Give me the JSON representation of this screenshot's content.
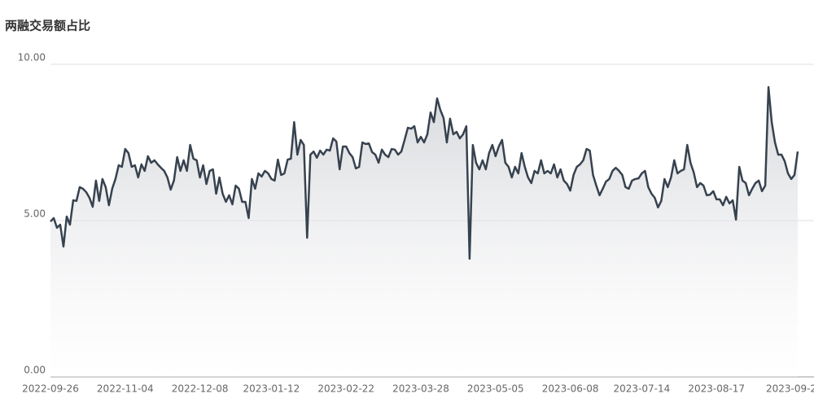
{
  "chart_data": {
    "type": "area-line",
    "title": "两融交易额占比",
    "color": "#37424f",
    "grid": true,
    "ylim": [
      0,
      10
    ],
    "yticks": [
      {
        "value": 0,
        "label": "0.00"
      },
      {
        "value": 5,
        "label": "5.00"
      },
      {
        "value": 10,
        "label": "10.00"
      }
    ],
    "categories": [
      "2022-09-26",
      null,
      null,
      null,
      null,
      null,
      null,
      null,
      null,
      null,
      null,
      null,
      null,
      null,
      null,
      null,
      null,
      null,
      null,
      null,
      null,
      null,
      null,
      "2022-11-04",
      null,
      null,
      null,
      null,
      null,
      null,
      null,
      null,
      null,
      null,
      null,
      null,
      null,
      null,
      null,
      null,
      null,
      null,
      null,
      null,
      null,
      null,
      "2022-12-08",
      null,
      null,
      null,
      null,
      null,
      null,
      null,
      null,
      null,
      null,
      null,
      null,
      null,
      null,
      null,
      null,
      null,
      null,
      null,
      null,
      null,
      "2023-01-12",
      null,
      null,
      null,
      null,
      null,
      null,
      null,
      null,
      null,
      null,
      null,
      null,
      null,
      null,
      null,
      null,
      null,
      null,
      null,
      null,
      null,
      null,
      "2023-02-22",
      null,
      null,
      null,
      null,
      null,
      null,
      null,
      null,
      null,
      null,
      null,
      null,
      null,
      null,
      null,
      null,
      null,
      null,
      null,
      null,
      null,
      null,
      "2023-03-28",
      null,
      null,
      null,
      null,
      null,
      null,
      null,
      null,
      null,
      null,
      null,
      null,
      null,
      null,
      null,
      null,
      null,
      null,
      null,
      null,
      null,
      null,
      "2023-05-05",
      null,
      null,
      null,
      null,
      null,
      null,
      null,
      null,
      null,
      null,
      null,
      null,
      null,
      null,
      null,
      null,
      null,
      null,
      null,
      null,
      null,
      null,
      "2023-06-08",
      null,
      null,
      null,
      null,
      null,
      null,
      null,
      null,
      null,
      null,
      null,
      null,
      null,
      null,
      null,
      null,
      null,
      null,
      null,
      null,
      null,
      "2023-07-14",
      null,
      null,
      null,
      null,
      null,
      null,
      null,
      null,
      null,
      null,
      null,
      null,
      null,
      null,
      null,
      null,
      null,
      null,
      null,
      null,
      null,
      null,
      "2023-08-17",
      null,
      null,
      null,
      null,
      null,
      null,
      null,
      null,
      null,
      null,
      null,
      null,
      null,
      null,
      null,
      null,
      null,
      null,
      null,
      null,
      null,
      null,
      "2023-09-2",
      null,
      null
    ],
    "values": [
      4.97,
      5.08,
      4.77,
      4.87,
      4.17,
      5.13,
      4.87,
      5.65,
      5.63,
      6.07,
      6.02,
      5.91,
      5.73,
      5.44,
      6.28,
      5.63,
      6.33,
      6.07,
      5.49,
      6.02,
      6.33,
      6.77,
      6.72,
      7.29,
      7.16,
      6.72,
      6.77,
      6.38,
      6.8,
      6.59,
      7.06,
      6.85,
      6.93,
      6.8,
      6.69,
      6.59,
      6.38,
      5.99,
      6.28,
      7.03,
      6.59,
      6.93,
      6.59,
      7.42,
      6.98,
      6.93,
      6.38,
      6.77,
      6.17,
      6.59,
      6.64,
      5.86,
      6.38,
      5.86,
      5.6,
      5.81,
      5.52,
      6.12,
      6.02,
      5.6,
      5.6,
      5.08,
      6.33,
      6.02,
      6.51,
      6.41,
      6.59,
      6.51,
      6.33,
      6.28,
      6.95,
      6.46,
      6.51,
      6.95,
      6.98,
      8.15,
      7.11,
      7.58,
      7.42,
      4.45,
      7.11,
      7.21,
      7.01,
      7.24,
      7.11,
      7.27,
      7.24,
      7.63,
      7.53,
      6.64,
      7.37,
      7.37,
      7.16,
      7.03,
      6.67,
      6.72,
      7.5,
      7.45,
      7.47,
      7.19,
      7.11,
      6.85,
      7.27,
      7.11,
      7.03,
      7.29,
      7.27,
      7.11,
      7.21,
      7.58,
      7.97,
      7.94,
      8.02,
      7.5,
      7.68,
      7.5,
      7.76,
      8.46,
      8.15,
      8.91,
      8.54,
      8.28,
      7.5,
      8.26,
      7.76,
      7.84,
      7.63,
      7.76,
      8.02,
      3.78,
      7.42,
      6.85,
      6.64,
      6.93,
      6.64,
      7.16,
      7.42,
      7.06,
      7.37,
      7.58,
      6.85,
      6.72,
      6.38,
      6.72,
      6.51,
      7.16,
      6.72,
      6.38,
      6.2,
      6.59,
      6.51,
      6.93,
      6.51,
      6.59,
      6.51,
      6.8,
      6.38,
      6.64,
      6.28,
      6.17,
      5.96,
      6.46,
      6.72,
      6.8,
      6.93,
      7.29,
      7.24,
      6.46,
      6.12,
      5.81,
      6.02,
      6.25,
      6.33,
      6.59,
      6.69,
      6.59,
      6.46,
      6.07,
      6.02,
      6.28,
      6.33,
      6.35,
      6.51,
      6.59,
      6.07,
      5.86,
      5.73,
      5.42,
      5.63,
      6.33,
      6.07,
      6.38,
      6.93,
      6.51,
      6.59,
      6.64,
      7.42,
      6.85,
      6.54,
      6.07,
      6.2,
      6.12,
      5.81,
      5.83,
      5.94,
      5.68,
      5.68,
      5.49,
      5.76,
      5.55,
      5.65,
      5.03,
      6.72,
      6.28,
      6.2,
      5.81,
      6.02,
      6.2,
      6.28,
      5.94,
      6.12,
      9.27,
      8.15,
      7.5,
      7.11,
      7.11,
      6.9,
      6.51,
      6.33,
      6.46,
      7.21
    ]
  }
}
